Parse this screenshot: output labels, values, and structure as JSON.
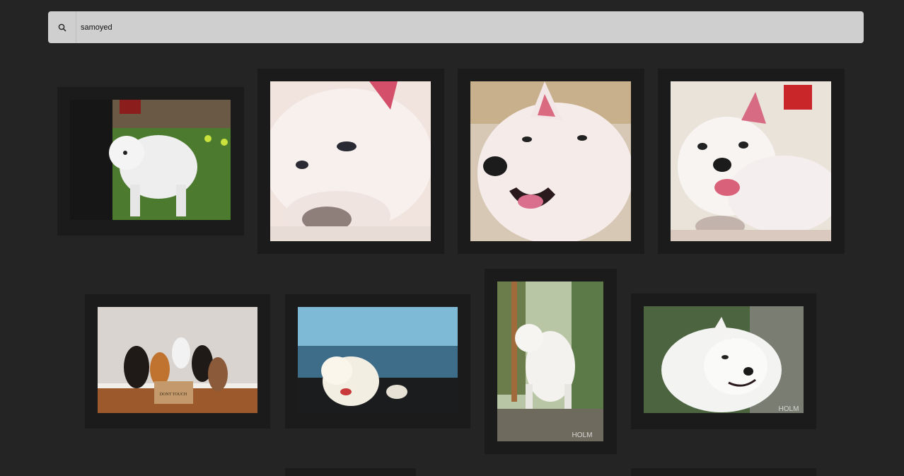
{
  "search": {
    "query": "samoyed",
    "icon": "search-icon"
  },
  "gallery": {
    "images": [
      {
        "subject": "samoyed standing on grass at a dog show"
      },
      {
        "subject": "close-up of white samoyed resting its head on its paw"
      },
      {
        "subject": "smiling white samoyed close-up indoors"
      },
      {
        "subject": "smiling white samoyed lying on the floor"
      },
      {
        "subject": "group of dogs sitting around a cardboard box",
        "printed_text": "DONT TOUCH"
      },
      {
        "subject": "samoyed by the sea at dusk"
      },
      {
        "subject": "samoyed standing on a rock in the forest",
        "printed_text": "HOLM"
      },
      {
        "subject": "fluffy samoyed portrait outdoors",
        "printed_text": "HOLM"
      }
    ]
  }
}
